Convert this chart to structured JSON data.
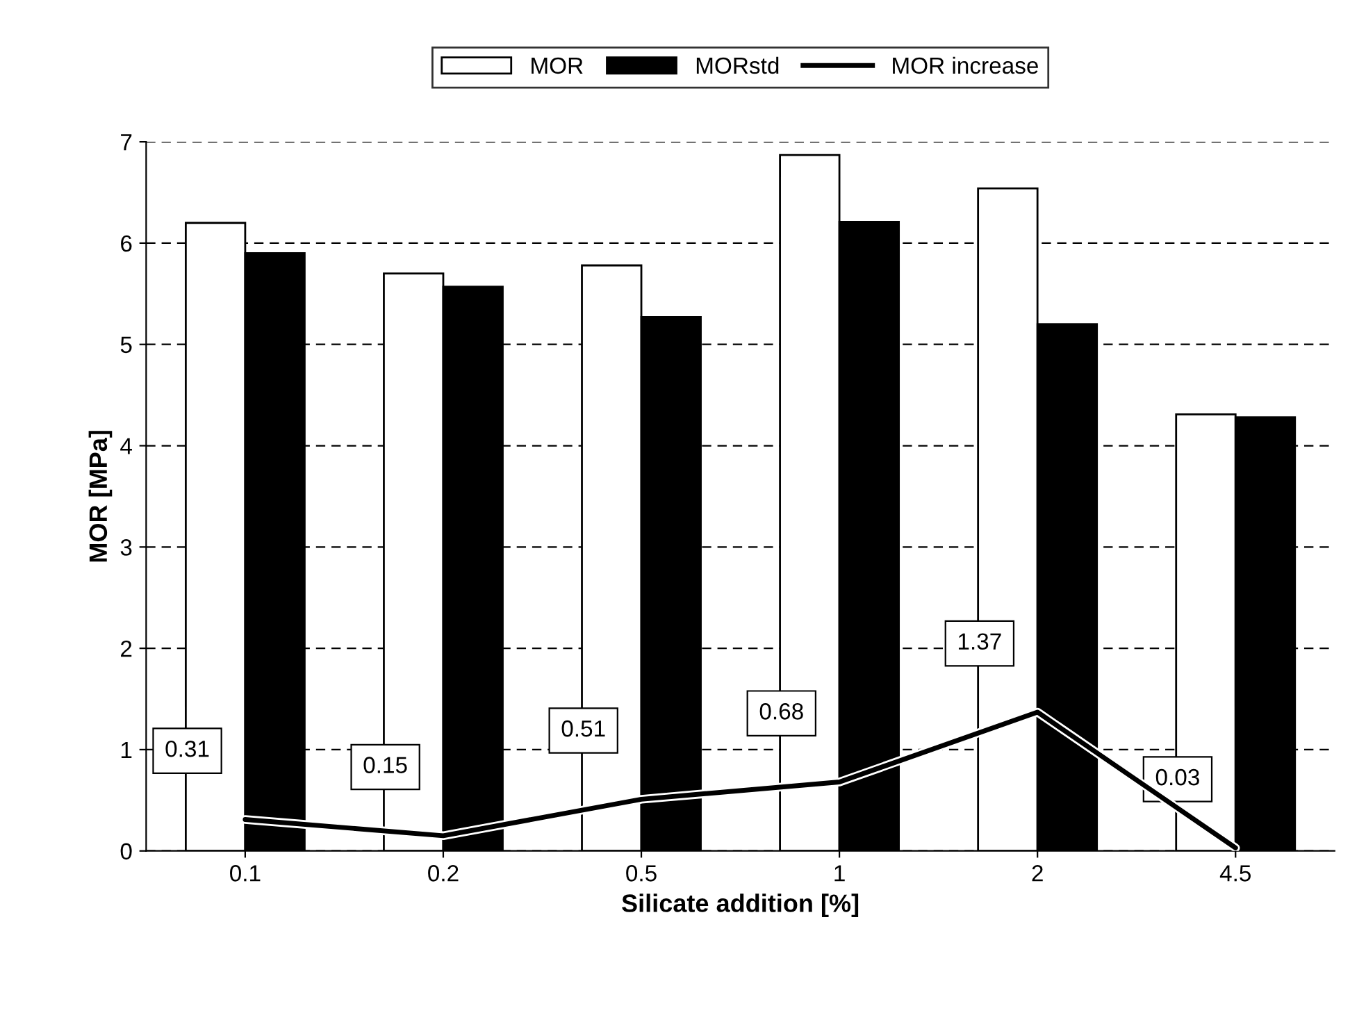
{
  "chart_data": {
    "type": "bar",
    "xlabel": "Silicate addition [%]",
    "ylabel": "MOR [MPa]",
    "categories": [
      "0.1",
      "0.2",
      "0.5",
      "1",
      "2",
      "4.5"
    ],
    "series": [
      {
        "name": "MOR",
        "color": "#ffffff",
        "values": [
          6.2,
          5.7,
          5.78,
          6.87,
          6.54,
          4.31
        ]
      },
      {
        "name": "MORstd",
        "color": "#000000",
        "values": [
          5.9,
          5.57,
          5.27,
          6.21,
          5.2,
          4.28
        ]
      },
      {
        "name": "MOR increase",
        "type": "line",
        "color": "#000000",
        "values": [
          0.31,
          0.15,
          0.51,
          0.68,
          1.37,
          0.03
        ],
        "value_labels": [
          "0.31",
          "0.15",
          "0.51",
          "0.68",
          "1.37",
          "0.03"
        ]
      }
    ],
    "ylim": [
      0,
      7
    ],
    "yticks": [
      0,
      1,
      2,
      3,
      4,
      5,
      6,
      7
    ],
    "grid": "y",
    "legend": "top",
    "line_style": "solid",
    "marker": "none"
  }
}
